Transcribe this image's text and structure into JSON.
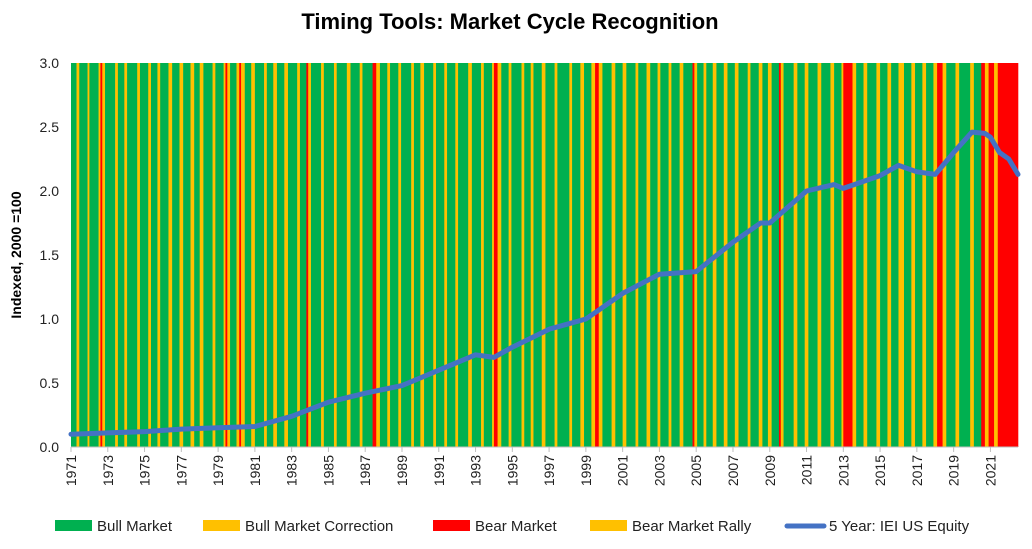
{
  "chart_data": {
    "type": "line",
    "title": "Timing Tools: Market Cycle Recognition",
    "ylabel": "Indexed, 2000 =100",
    "xlabel": "",
    "ylim": [
      0.0,
      3.0
    ],
    "xlim": [
      1971,
      2022.5
    ],
    "yticks": [
      "0.0",
      "0.5",
      "1.0",
      "1.5",
      "2.0",
      "2.5",
      "3.0"
    ],
    "xticks": [
      "1971",
      "1973",
      "1975",
      "1977",
      "1979",
      "1981",
      "1983",
      "1985",
      "1987",
      "1989",
      "1991",
      "1993",
      "1995",
      "1997",
      "1999",
      "2001",
      "2003",
      "2005",
      "2007",
      "2009",
      "2011",
      "2013",
      "2015",
      "2017",
      "2019",
      "2021"
    ],
    "regime_colors": {
      "bull": "#00B050",
      "correction": "#FFC000",
      "bear": "#FF0000",
      "rally": "#FFC000"
    },
    "regimes": [
      [
        1971.0,
        "bull"
      ],
      [
        1971.3,
        "correction"
      ],
      [
        1971.45,
        "bull"
      ],
      [
        1971.9,
        "correction"
      ],
      [
        1972.0,
        "bull"
      ],
      [
        1972.5,
        "correction"
      ],
      [
        1972.6,
        "bear"
      ],
      [
        1972.7,
        "correction"
      ],
      [
        1972.85,
        "bull"
      ],
      [
        1973.4,
        "correction"
      ],
      [
        1973.55,
        "bull"
      ],
      [
        1973.9,
        "correction"
      ],
      [
        1974.05,
        "bull"
      ],
      [
        1974.6,
        "correction"
      ],
      [
        1974.75,
        "bull"
      ],
      [
        1975.2,
        "correction"
      ],
      [
        1975.35,
        "bull"
      ],
      [
        1975.7,
        "correction"
      ],
      [
        1975.85,
        "bull"
      ],
      [
        1976.3,
        "correction"
      ],
      [
        1976.5,
        "bull"
      ],
      [
        1976.9,
        "correction"
      ],
      [
        1977.1,
        "bull"
      ],
      [
        1977.5,
        "correction"
      ],
      [
        1977.7,
        "bull"
      ],
      [
        1978.0,
        "correction"
      ],
      [
        1978.2,
        "bull"
      ],
      [
        1978.7,
        "correction"
      ],
      [
        1978.85,
        "bull"
      ],
      [
        1979.3,
        "correction"
      ],
      [
        1979.4,
        "bear"
      ],
      [
        1979.5,
        "correction"
      ],
      [
        1979.65,
        "bull"
      ],
      [
        1980.0,
        "correction"
      ],
      [
        1980.15,
        "bear"
      ],
      [
        1980.25,
        "correction"
      ],
      [
        1980.45,
        "bull"
      ],
      [
        1980.8,
        "correction"
      ],
      [
        1981.0,
        "bull"
      ],
      [
        1981.5,
        "correction"
      ],
      [
        1981.65,
        "bull"
      ],
      [
        1982.0,
        "correction"
      ],
      [
        1982.2,
        "bull"
      ],
      [
        1982.6,
        "correction"
      ],
      [
        1982.8,
        "bull"
      ],
      [
        1983.3,
        "correction"
      ],
      [
        1983.45,
        "bull"
      ],
      [
        1983.8,
        "bear"
      ],
      [
        1983.9,
        "correction"
      ],
      [
        1984.05,
        "bull"
      ],
      [
        1984.6,
        "correction"
      ],
      [
        1984.75,
        "bull"
      ],
      [
        1985.3,
        "correction"
      ],
      [
        1985.45,
        "bull"
      ],
      [
        1986.0,
        "correction"
      ],
      [
        1986.2,
        "bull"
      ],
      [
        1986.7,
        "correction"
      ],
      [
        1986.85,
        "bull"
      ],
      [
        1987.4,
        "bear"
      ],
      [
        1987.6,
        "correction"
      ],
      [
        1987.8,
        "bull"
      ],
      [
        1988.2,
        "correction"
      ],
      [
        1988.35,
        "bull"
      ],
      [
        1988.8,
        "correction"
      ],
      [
        1988.95,
        "bull"
      ],
      [
        1989.5,
        "correction"
      ],
      [
        1989.65,
        "bull"
      ],
      [
        1990.0,
        "correction"
      ],
      [
        1990.2,
        "bull"
      ],
      [
        1990.7,
        "correction"
      ],
      [
        1990.85,
        "bull"
      ],
      [
        1991.3,
        "correction"
      ],
      [
        1991.45,
        "bull"
      ],
      [
        1991.9,
        "correction"
      ],
      [
        1992.05,
        "bull"
      ],
      [
        1992.6,
        "correction"
      ],
      [
        1992.8,
        "bull"
      ],
      [
        1993.3,
        "correction"
      ],
      [
        1993.45,
        "bull"
      ],
      [
        1993.9,
        "correction"
      ],
      [
        1994.0,
        "bear"
      ],
      [
        1994.2,
        "correction"
      ],
      [
        1994.4,
        "bull"
      ],
      [
        1994.8,
        "correction"
      ],
      [
        1994.95,
        "bull"
      ],
      [
        1995.5,
        "correction"
      ],
      [
        1995.65,
        "bull"
      ],
      [
        1996.0,
        "correction"
      ],
      [
        1996.15,
        "bull"
      ],
      [
        1996.6,
        "correction"
      ],
      [
        1996.8,
        "bull"
      ],
      [
        1997.3,
        "correction"
      ],
      [
        1997.45,
        "bull"
      ],
      [
        1998.1,
        "correction"
      ],
      [
        1998.25,
        "bull"
      ],
      [
        1998.7,
        "correction"
      ],
      [
        1998.9,
        "bull"
      ],
      [
        1999.3,
        "correction"
      ],
      [
        1999.5,
        "bear"
      ],
      [
        1999.7,
        "correction"
      ],
      [
        1999.9,
        "bull"
      ],
      [
        2000.4,
        "correction"
      ],
      [
        2000.6,
        "bull"
      ],
      [
        2001.0,
        "correction"
      ],
      [
        2001.2,
        "bull"
      ],
      [
        2001.7,
        "correction"
      ],
      [
        2001.85,
        "bull"
      ],
      [
        2002.3,
        "correction"
      ],
      [
        2002.5,
        "bull"
      ],
      [
        2002.9,
        "correction"
      ],
      [
        2003.05,
        "bull"
      ],
      [
        2003.5,
        "correction"
      ],
      [
        2003.65,
        "bull"
      ],
      [
        2004.1,
        "correction"
      ],
      [
        2004.3,
        "bull"
      ],
      [
        2004.8,
        "bear"
      ],
      [
        2004.9,
        "correction"
      ],
      [
        2005.05,
        "bull"
      ],
      [
        2005.4,
        "correction"
      ],
      [
        2005.55,
        "bull"
      ],
      [
        2005.9,
        "correction"
      ],
      [
        2006.1,
        "bull"
      ],
      [
        2006.5,
        "correction"
      ],
      [
        2006.7,
        "bull"
      ],
      [
        2007.1,
        "correction"
      ],
      [
        2007.3,
        "bull"
      ],
      [
        2007.8,
        "correction"
      ],
      [
        2007.95,
        "bull"
      ],
      [
        2008.4,
        "correction"
      ],
      [
        2008.6,
        "bull"
      ],
      [
        2008.9,
        "correction"
      ],
      [
        2009.1,
        "bull"
      ],
      [
        2009.5,
        "bear"
      ],
      [
        2009.6,
        "correction"
      ],
      [
        2009.75,
        "bull"
      ],
      [
        2010.3,
        "correction"
      ],
      [
        2010.5,
        "bull"
      ],
      [
        2010.9,
        "correction"
      ],
      [
        2011.1,
        "bull"
      ],
      [
        2011.6,
        "correction"
      ],
      [
        2011.8,
        "bull"
      ],
      [
        2012.3,
        "correction"
      ],
      [
        2012.5,
        "bull"
      ],
      [
        2012.9,
        "correction"
      ],
      [
        2013.0,
        "bear"
      ],
      [
        2013.5,
        "correction"
      ],
      [
        2013.7,
        "bull"
      ],
      [
        2014.1,
        "correction"
      ],
      [
        2014.3,
        "bull"
      ],
      [
        2014.8,
        "correction"
      ],
      [
        2015.0,
        "bull"
      ],
      [
        2015.4,
        "correction"
      ],
      [
        2015.6,
        "bull"
      ],
      [
        2016.0,
        "correction"
      ],
      [
        2016.3,
        "bull"
      ],
      [
        2016.7,
        "correction"
      ],
      [
        2016.9,
        "bull"
      ],
      [
        2017.3,
        "correction"
      ],
      [
        2017.5,
        "bull"
      ],
      [
        2017.9,
        "correction"
      ],
      [
        2018.1,
        "bear"
      ],
      [
        2018.4,
        "correction"
      ],
      [
        2018.6,
        "bull"
      ],
      [
        2019.1,
        "correction"
      ],
      [
        2019.3,
        "bull"
      ],
      [
        2019.9,
        "correction"
      ],
      [
        2020.1,
        "bull"
      ],
      [
        2020.5,
        "bear"
      ],
      [
        2020.7,
        "correction"
      ],
      [
        2020.9,
        "bear"
      ],
      [
        2021.2,
        "correction"
      ],
      [
        2021.4,
        "bear"
      ],
      [
        2022.5,
        "end"
      ]
    ],
    "series": [
      {
        "name": "5 Year: IEI US Equity",
        "color": "#4472C4",
        "x": [
          1971,
          1973,
          1975,
          1977,
          1979,
          1981,
          1983,
          1985,
          1987,
          1989,
          1991,
          1993,
          1994,
          1995,
          1997,
          1999,
          2001,
          2003,
          2005,
          2007,
          2008.5,
          2009,
          2011,
          2012.5,
          2013,
          2015,
          2016,
          2017,
          2018,
          2019,
          2020,
          2020.7,
          2021,
          2021.5,
          2022,
          2022.5
        ],
        "y": [
          0.1,
          0.11,
          0.12,
          0.14,
          0.15,
          0.16,
          0.24,
          0.35,
          0.42,
          0.48,
          0.6,
          0.72,
          0.7,
          0.78,
          0.92,
          1.0,
          1.2,
          1.35,
          1.37,
          1.6,
          1.75,
          1.75,
          2.0,
          2.05,
          2.02,
          2.12,
          2.2,
          2.15,
          2.13,
          2.3,
          2.46,
          2.45,
          2.42,
          2.3,
          2.25,
          2.13
        ]
      }
    ],
    "legend": [
      {
        "label": "Bull Market",
        "color": "#00B050",
        "kind": "box"
      },
      {
        "label": "Bull Market Correction",
        "color": "#FFC000",
        "kind": "box"
      },
      {
        "label": "Bear Market",
        "color": "#FF0000",
        "kind": "box"
      },
      {
        "label": "Bear Market Rally",
        "color": "#FFC000",
        "kind": "box"
      },
      {
        "label": "5 Year: IEI US Equity",
        "color": "#4472C4",
        "kind": "line"
      }
    ],
    "legend_position": "bottom"
  }
}
